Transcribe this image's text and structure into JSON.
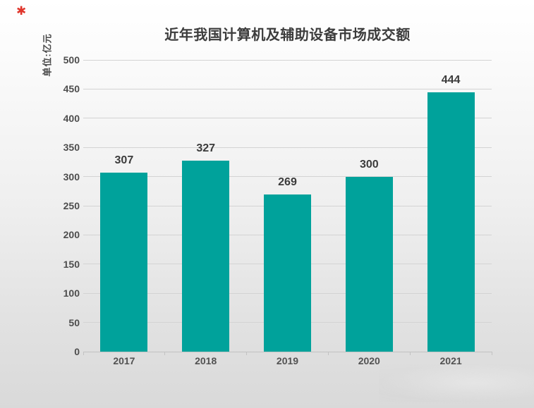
{
  "logo": {
    "glyph": "✱",
    "color": "#e0352b"
  },
  "chart_data": {
    "type": "bar",
    "title": "近年我国计算机及辅助设备市场成交额",
    "unit_label": "单位:亿元",
    "categories": [
      "2017",
      "2018",
      "2019",
      "2020",
      "2021"
    ],
    "values": [
      307,
      327,
      269,
      300,
      444
    ],
    "xlabel": "",
    "ylabel": "单位:亿元",
    "ylim": [
      0,
      500
    ],
    "yticks": [
      0,
      50,
      100,
      150,
      200,
      250,
      300,
      350,
      400,
      450,
      500
    ],
    "grid": true,
    "legend": "none",
    "bar_color": "#00a29b",
    "gridline_color": "#d3d3d3",
    "axis_color": "#c2c2c2",
    "title_color": "#3c3c3c",
    "value_label_color": "#3b3b3b",
    "tick_label_color": "#4d4d4d",
    "background_top": "#ffffff",
    "background_bottom": "#d9d9d9"
  }
}
